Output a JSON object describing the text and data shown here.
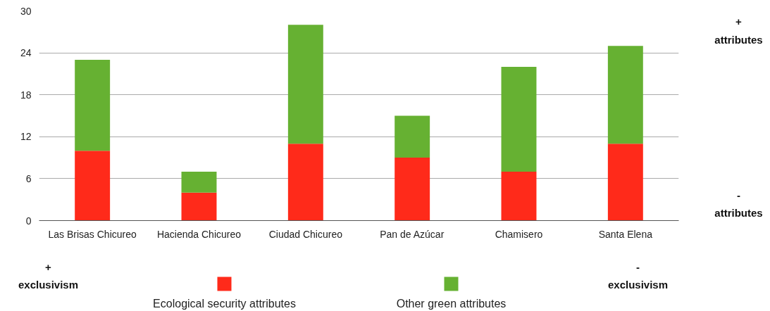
{
  "chart_data": {
    "type": "bar",
    "stacked": true,
    "categories": [
      "Las Brisas Chicureo",
      "Hacienda Chicureo",
      "Ciudad Chicureo",
      "Pan de Azúcar",
      "Chamisero",
      "Santa Elena"
    ],
    "series": [
      {
        "name": "Ecological security attributes",
        "color": "#ff2a1a",
        "values": [
          10,
          4,
          11,
          9,
          7,
          11
        ]
      },
      {
        "name": "Other green attributes",
        "color": "#66b132",
        "values": [
          13,
          3,
          17,
          6,
          15,
          14
        ]
      }
    ],
    "ylim": [
      0,
      30
    ],
    "yticks": [
      0,
      6,
      12,
      18,
      24,
      30
    ],
    "grid": "y",
    "legend": "bottom",
    "annotations": [
      "+\nattributes",
      "-\nattributes",
      "+\nexclusivism",
      "-\nexclusivism"
    ]
  }
}
